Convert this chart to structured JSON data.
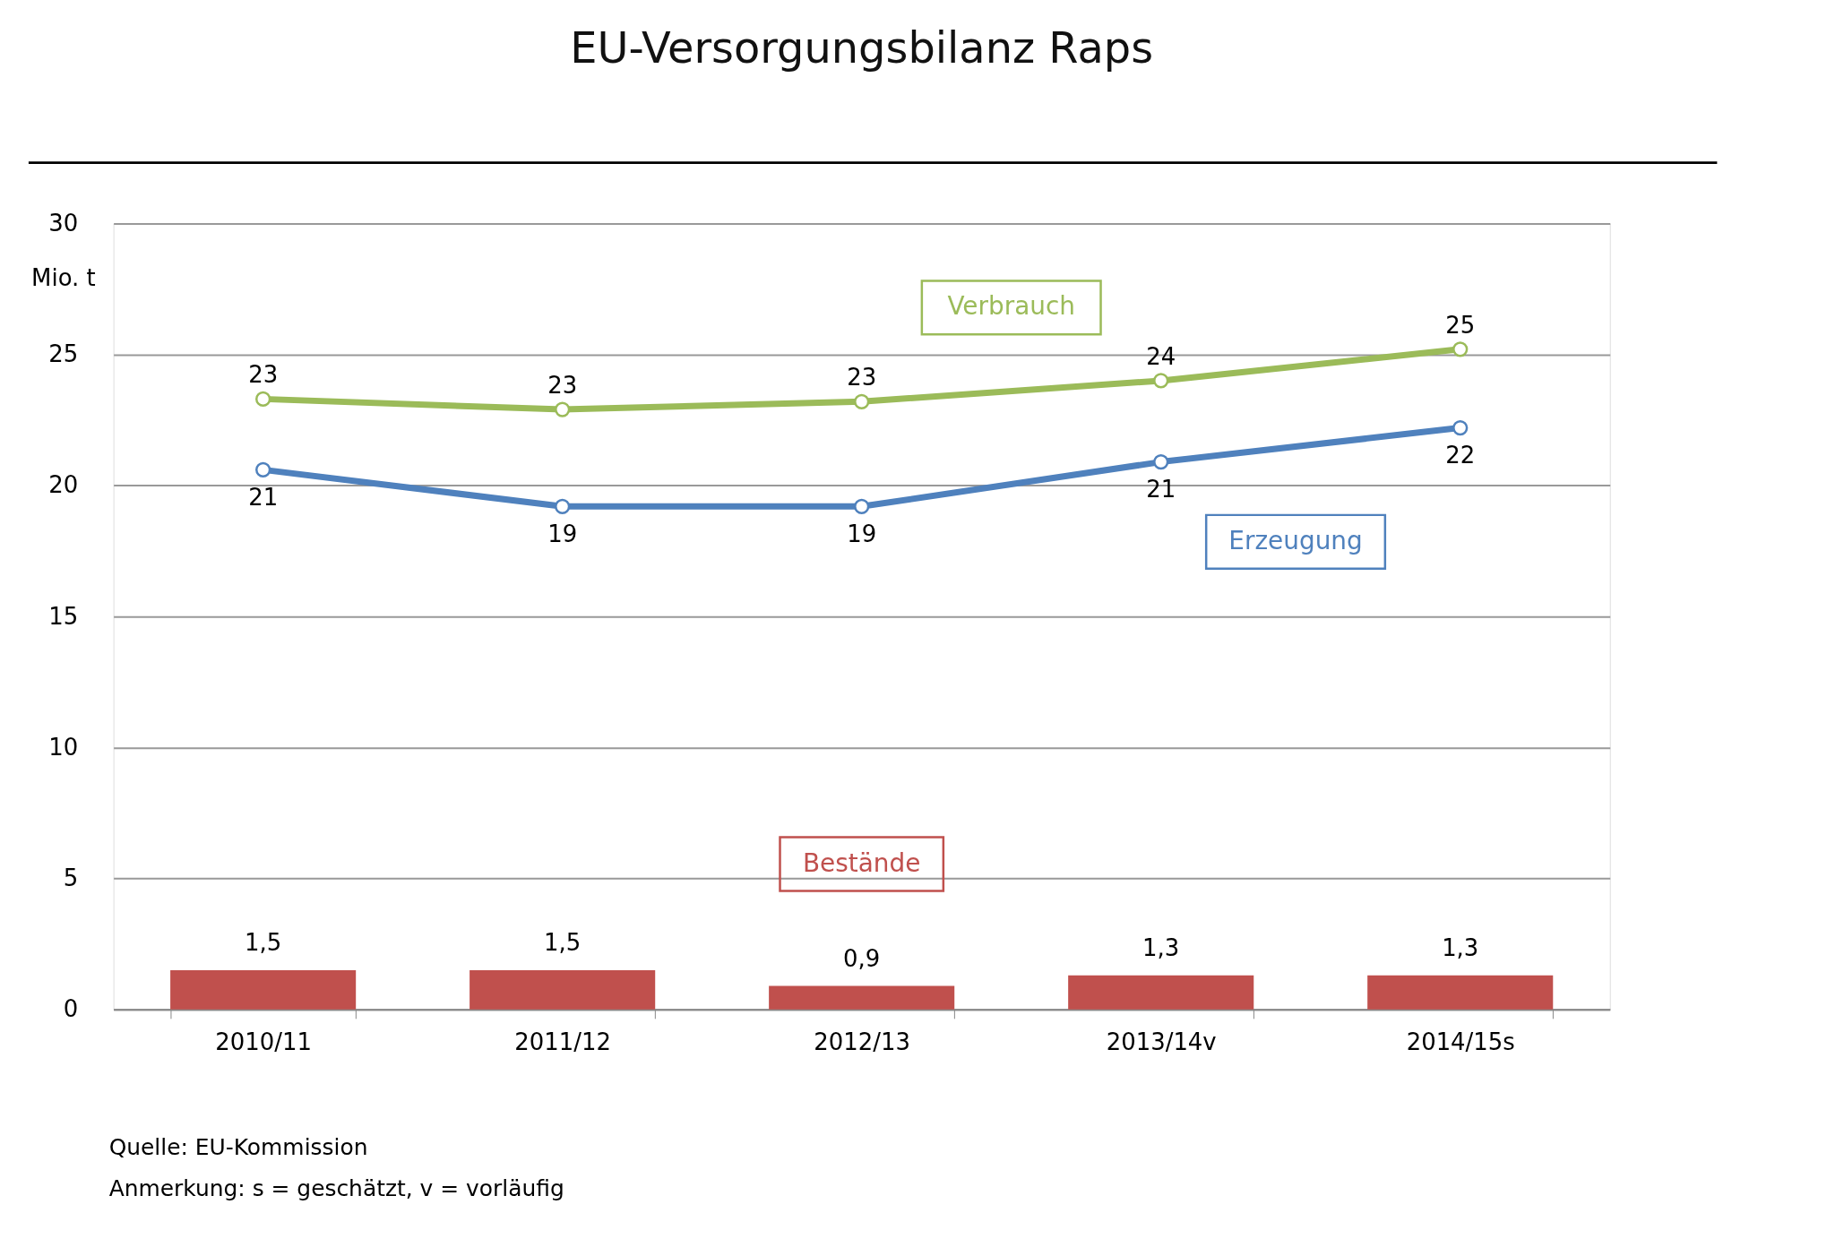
{
  "chart_data": {
    "type": "line",
    "title": "EU-Versorgungsbilanz Raps",
    "ylabel": "Mio. t",
    "categories": [
      "2010/11",
      "2011/12",
      "2012/13",
      "2013/14v",
      "2014/15s"
    ],
    "series": [
      {
        "name": "Verbrauch",
        "color": "#9bbb59",
        "values": [
          23.3,
          22.9,
          23.2,
          24.0,
          25.2
        ],
        "value_labels": [
          "23",
          "23",
          "23",
          "24",
          "25"
        ]
      },
      {
        "name": "Erzeugung",
        "color": "#4f81bd",
        "values": [
          20.6,
          19.2,
          19.2,
          20.9,
          22.2
        ],
        "value_labels": [
          "21",
          "19",
          "19",
          "21",
          "22"
        ]
      },
      {
        "name": "Bestände",
        "type": "bar",
        "color": "#c0504d",
        "values": [
          1.5,
          1.5,
          0.9,
          1.3,
          1.3
        ],
        "value_labels": [
          "1,5",
          "1,5",
          "0,9",
          "1,3",
          "1,3"
        ]
      }
    ],
    "ylim": [
      0,
      30
    ],
    "yticks": [
      0,
      5,
      10,
      15,
      20,
      25,
      30
    ],
    "grid": "y",
    "legend": false,
    "marker": "circle",
    "line_style": "solid",
    "annotations": [
      "Quelle: EU-Kommission",
      "Anmerkung: s = geschätzt, v = vorläufig"
    ]
  }
}
